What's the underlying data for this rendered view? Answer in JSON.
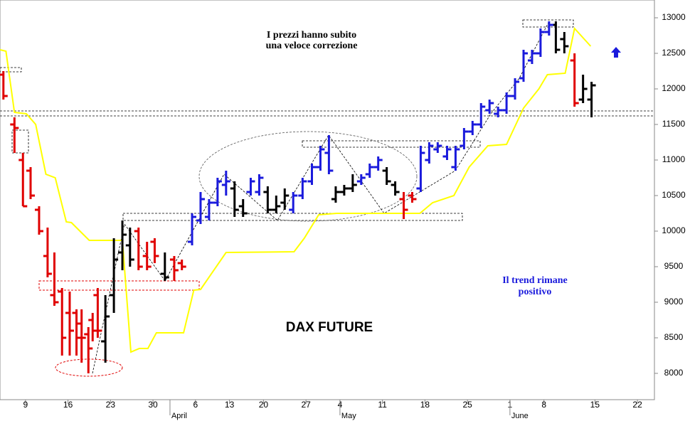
{
  "chart_data": {
    "type": "ohlc",
    "title": "DAX FUTURE",
    "annotations": [
      "I prezzi hanno subito",
      "una veloce correzione",
      "Il trend rimane",
      "positivo"
    ],
    "xlim": [
      0,
      77
    ],
    "ylim": [
      7630,
      13250
    ],
    "xticks": [
      {
        "value": 3,
        "label": "9"
      },
      {
        "value": 8,
        "label": "16"
      },
      {
        "value": 13,
        "label": "23"
      },
      {
        "value": 18,
        "label": "30"
      },
      {
        "value": 23,
        "label": "6"
      },
      {
        "value": 27,
        "label": "13"
      },
      {
        "value": 31,
        "label": "20"
      },
      {
        "value": 36,
        "label": "27"
      },
      {
        "value": 40,
        "label": "4"
      },
      {
        "value": 45,
        "label": "11"
      },
      {
        "value": 50,
        "label": "18"
      },
      {
        "value": 55,
        "label": "25"
      },
      {
        "value": 60,
        "label": "1"
      },
      {
        "value": 64,
        "label": "8"
      },
      {
        "value": 70,
        "label": "15"
      },
      {
        "value": 75,
        "label": "22"
      }
    ],
    "month_ticks": [
      {
        "value": 20,
        "label": "April"
      },
      {
        "value": 40,
        "label": "May"
      },
      {
        "value": 60,
        "label": "June"
      }
    ],
    "yticks": [
      8000,
      8500,
      9000,
      9500,
      10000,
      10500,
      11000,
      11500,
      12000,
      12500,
      13000
    ],
    "series": [
      {
        "color": "#e00000",
        "x": [
          0.4,
          1.7,
          2.7,
          3.6,
          4.6,
          5.6,
          6.4,
          7.3,
          8.2,
          9.0,
          9.6,
          10.4,
          10.9,
          11.5,
          16.3,
          17.3,
          18.2,
          20.5,
          21.4,
          47.5,
          48.5,
          67.6
        ],
        "open": [
          12200,
          11500,
          11000,
          10850,
          10300,
          9650,
          9100,
          9150,
          8850,
          8850,
          8700,
          8550,
          8750,
          9100,
          10000,
          9650,
          9850,
          9600,
          9550,
          10450,
          10500,
          12400
        ],
        "high": [
          12250,
          11600,
          11100,
          10900,
          10350,
          10050,
          9700,
          9200,
          9150,
          8900,
          8900,
          8650,
          8850,
          9200,
          10050,
          9850,
          9900,
          9650,
          9600,
          10550,
          10550,
          12500
        ],
        "low": [
          11850,
          11100,
          10350,
          10450,
          9950,
          9350,
          8950,
          8250,
          8250,
          8250,
          8150,
          8000,
          8450,
          8500,
          9450,
          9450,
          9550,
          9300,
          9450,
          10170,
          10400,
          11750
        ],
        "close": [
          11900,
          11450,
          10350,
          10500,
          10000,
          9400,
          9000,
          8500,
          8600,
          8500,
          8500,
          8350,
          8600,
          8600,
          9500,
          9500,
          9650,
          9450,
          9500,
          10300,
          10450,
          11800
        ]
      },
      {
        "color": "#000000",
        "x": [
          12.4,
          13.4,
          14.4,
          15.3,
          19.4,
          27.6,
          28.6,
          31.5,
          32.5,
          33.5,
          39.5,
          40.5,
          41.5,
          45.5,
          46.5,
          65.4,
          66.4,
          68.6,
          69.6
        ],
        "open": [
          8450,
          9100,
          9700,
          9800,
          9400,
          10600,
          10350,
          10550,
          10300,
          10400,
          10450,
          10550,
          10600,
          10850,
          10650,
          12900,
          12700,
          11850,
          11850
        ],
        "high": [
          9100,
          9900,
          10150,
          10050,
          9700,
          10700,
          10450,
          10630,
          10500,
          10600,
          10630,
          10650,
          10800,
          10900,
          10700,
          12950,
          12800,
          12200,
          12100
        ],
        "low": [
          8150,
          8850,
          9450,
          9500,
          9300,
          10200,
          10200,
          10250,
          10250,
          10300,
          10400,
          10500,
          10550,
          10650,
          10500,
          12500,
          12500,
          11800,
          11600
        ],
        "close": [
          8800,
          9600,
          9950,
          9600,
          9350,
          10300,
          10250,
          10300,
          10350,
          10500,
          10550,
          10600,
          10650,
          10700,
          10550,
          12550,
          12600,
          12000,
          12050
        ]
      },
      {
        "color": "#1a1adc",
        "x": [
          22.6,
          23.6,
          24.6,
          25.6,
          26.6,
          29.5,
          30.5,
          34.5,
          35.6,
          36.7,
          37.7,
          38.7,
          42.5,
          43.5,
          44.5,
          49.5,
          50.5,
          51.5,
          52.6,
          53.6,
          54.6,
          55.6,
          56.6,
          57.6,
          58.6,
          59.6,
          60.6,
          61.6,
          62.6,
          63.6,
          64.6
        ],
        "open": [
          9850,
          10150,
          10200,
          10400,
          10650,
          10550,
          10550,
          10300,
          10500,
          10700,
          10900,
          11100,
          10700,
          10800,
          10900,
          10600,
          11000,
          11150,
          11050,
          10900,
          11200,
          11400,
          11500,
          11700,
          11650,
          11700,
          11900,
          12150,
          12400,
          12500,
          12800
        ],
        "high": [
          10250,
          10550,
          10450,
          10750,
          10850,
          10750,
          10800,
          10550,
          10750,
          10950,
          11200,
          11350,
          10800,
          10950,
          11050,
          11200,
          11250,
          11250,
          11200,
          11200,
          11450,
          11550,
          11800,
          11850,
          11750,
          11950,
          12150,
          12550,
          12550,
          12850,
          12950
        ],
        "low": [
          9800,
          10100,
          10150,
          10350,
          10500,
          10500,
          10500,
          10250,
          10450,
          10650,
          10850,
          10800,
          10650,
          10750,
          10850,
          10550,
          10950,
          11100,
          11000,
          10850,
          11150,
          11350,
          11450,
          11650,
          11600,
          11650,
          11850,
          12100,
          12350,
          12450,
          12750
        ],
        "close": [
          10200,
          10450,
          10400,
          10700,
          10700,
          10700,
          10750,
          10500,
          10700,
          10900,
          11150,
          10850,
          10750,
          10900,
          11000,
          11100,
          11200,
          11200,
          11150,
          11150,
          11400,
          11500,
          11750,
          11800,
          11700,
          11900,
          12100,
          12500,
          12500,
          12800,
          12900
        ]
      }
    ],
    "line": {
      "color": "#ffff00",
      "x": [
        0,
        0.7,
        1.7,
        3.1,
        4.2,
        5.4,
        6.5,
        7.8,
        8.4,
        10.5,
        14.4,
        15.4,
        16.4,
        17.4,
        18.4,
        21.6,
        22.8,
        23.6,
        26.6,
        34.6,
        35.8,
        37.5,
        39.6,
        49.4,
        50.9,
        53.4,
        55.2,
        57.4,
        59.6,
        61.6,
        63.4,
        64.4,
        66.5,
        67.6,
        69.5
      ],
      "values": [
        12550,
        12530,
        11670,
        11650,
        11500,
        10800,
        10750,
        10130,
        10120,
        9870,
        9870,
        8300,
        8350,
        8350,
        8570,
        8570,
        9170,
        9180,
        9700,
        9710,
        9900,
        10230,
        10250,
        10250,
        10400,
        10500,
        10900,
        11200,
        11220,
        11730,
        12000,
        12200,
        12220,
        12850,
        12600
      ]
    }
  }
}
